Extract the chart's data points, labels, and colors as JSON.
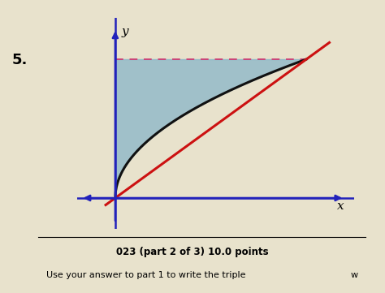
{
  "background_color": "#e8e2cc",
  "plot_bg_color": "#e0d9b0",
  "curve_color": "#111111",
  "line_color": "#cc1111",
  "axis_color": "#2222bb",
  "dashed_color": "#cc4477",
  "fill_color": "#7aafc8",
  "fill_alpha": 0.65,
  "label_x": "x",
  "label_y": "y",
  "label_5": "5.",
  "bottom_text1": "023 (part 2 of 3) 10.0 points",
  "bottom_text2": "Use your answer to part 1 to write the triple",
  "bottom_text3": "w"
}
